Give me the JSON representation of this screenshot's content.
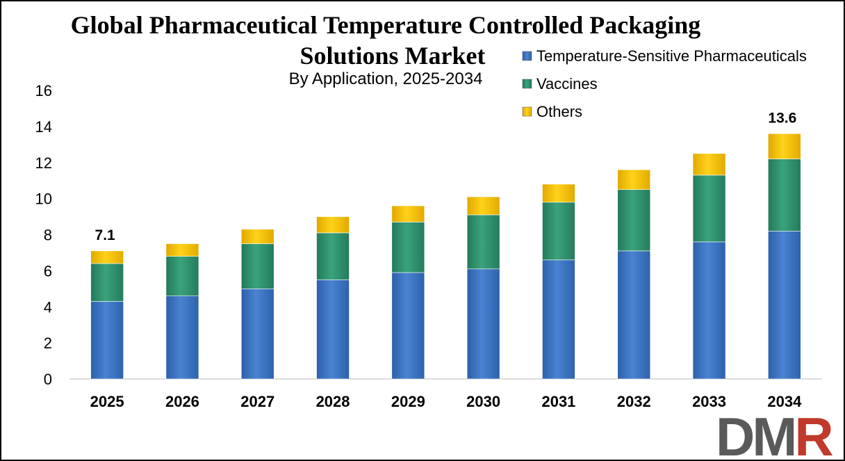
{
  "header": {
    "title_line1": "Global Pharmaceutical Temperature Controlled Packaging",
    "title_line2": "Solutions Market",
    "subtitle": "By Application, 2025-2034"
  },
  "logo": {
    "text": "DMR",
    "color_dark": "#5a5a5a",
    "color_accent": "#c0392b"
  },
  "chart_data": {
    "type": "bar",
    "stacked": true,
    "title": "Global Pharmaceutical Temperature Controlled Packaging Solutions Market",
    "subtitle": "By Application, 2025-2034",
    "categories": [
      "2025",
      "2026",
      "2027",
      "2028",
      "2029",
      "2030",
      "2031",
      "2032",
      "2033",
      "2034"
    ],
    "series": [
      {
        "name": "Temperature-Sensitive Pharmaceuticals",
        "color": "#3f74c2",
        "values": [
          4.3,
          4.6,
          5.0,
          5.5,
          5.9,
          6.1,
          6.6,
          7.1,
          7.6,
          8.2
        ]
      },
      {
        "name": "Vaccines",
        "color": "#2f9470",
        "values": [
          2.1,
          2.2,
          2.5,
          2.6,
          2.8,
          3.0,
          3.2,
          3.4,
          3.7,
          4.0
        ]
      },
      {
        "name": "Others",
        "color": "#f5c400",
        "values": [
          0.7,
          0.7,
          0.8,
          0.9,
          0.9,
          1.0,
          1.0,
          1.1,
          1.2,
          1.4
        ]
      }
    ],
    "yticks": [
      "0",
      "2",
      "4",
      "6",
      "8",
      "10",
      "12",
      "14",
      "16"
    ],
    "ylim": [
      0,
      16
    ],
    "data_labels": [
      {
        "category": "2025",
        "text": "7.1",
        "value": 7.1
      },
      {
        "category": "2034",
        "text": "13.6",
        "value": 13.6
      }
    ],
    "legend_position": "top-right",
    "grid": false
  }
}
